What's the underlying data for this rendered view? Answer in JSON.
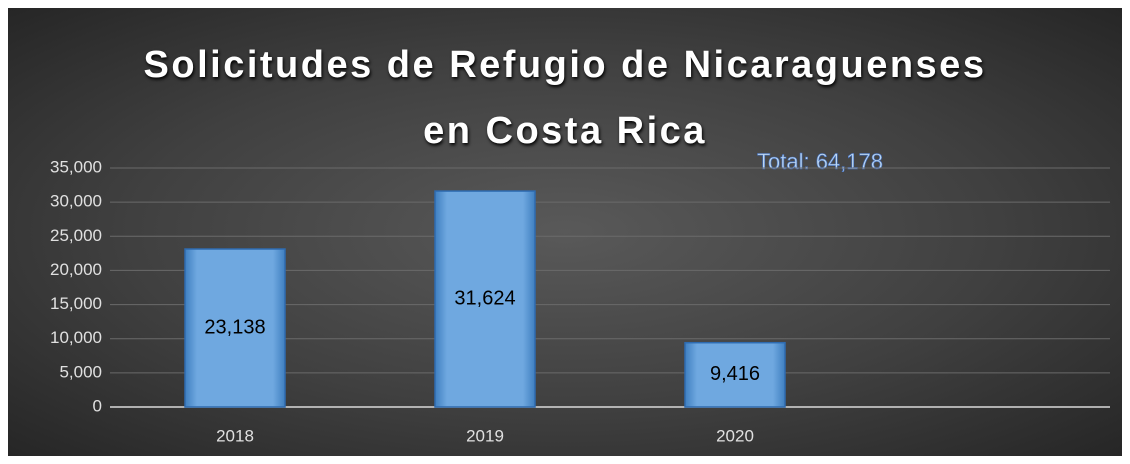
{
  "chart_data": {
    "type": "bar",
    "title": "Solicitudes de Refugio de Nicaraguenses en Costa Rica",
    "annotation": "Total: 64,178",
    "categories": [
      "2018",
      "2019",
      "2020",
      null
    ],
    "values": [
      23138,
      31624,
      9416,
      null
    ],
    "value_labels": [
      "23,138",
      "31,624",
      "9,416",
      null
    ],
    "color": "#5b9bd5",
    "ylim": [
      0,
      35000
    ],
    "yticks": [
      0,
      {
        "value": 5000,
        "label": "5,000"
      },
      {
        "value": 10000,
        "label": "10,000"
      },
      {
        "value": 15000,
        "label": "15,000"
      },
      {
        "value": 20000,
        "label": "20,000"
      },
      {
        "value": 25000,
        "label": "25,000"
      },
      {
        "value": 30000,
        "label": "30,000"
      },
      {
        "value": 35000,
        "label": "35,000"
      }
    ],
    "grid": true
  }
}
